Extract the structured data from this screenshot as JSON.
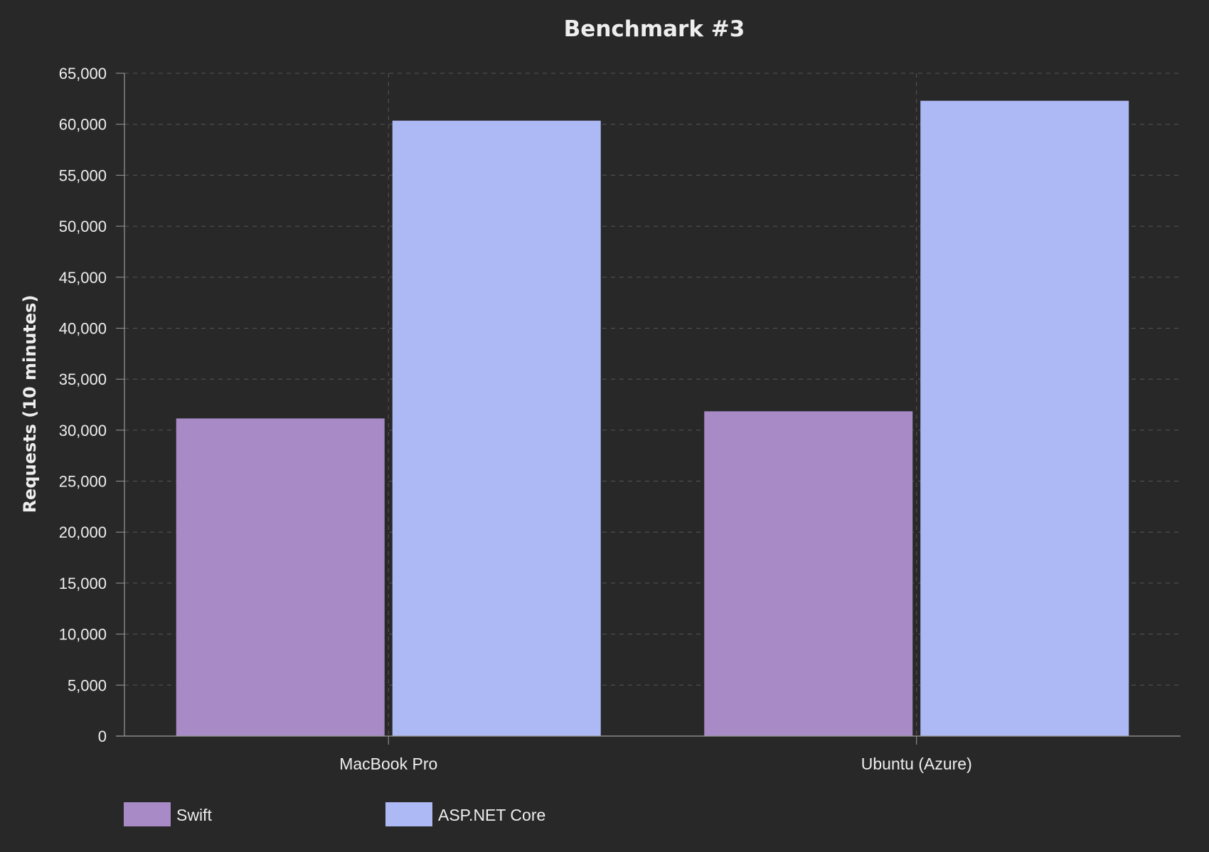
{
  "chart_data": {
    "type": "bar",
    "title": "Benchmark #3",
    "xlabel": "",
    "ylabel": "Requests (10 minutes)",
    "categories": [
      "MacBook Pro",
      "Ubuntu (Azure)"
    ],
    "series": [
      {
        "name": "Swift",
        "values": [
          31150,
          31850
        ],
        "color": "#a78ac6"
      },
      {
        "name": "ASP.NET Core",
        "values": [
          60350,
          62300
        ],
        "color": "#adb9f5"
      }
    ],
    "ylim": [
      0,
      65000
    ],
    "yticks": [
      0,
      5000,
      10000,
      15000,
      20000,
      25000,
      30000,
      35000,
      40000,
      45000,
      50000,
      55000,
      60000,
      65000
    ],
    "ytick_labels": [
      "0",
      "5,000",
      "10,000",
      "15,000",
      "20,000",
      "25,000",
      "30,000",
      "35,000",
      "40,000",
      "45,000",
      "50,000",
      "55,000",
      "60,000",
      "65,000"
    ],
    "grid": true,
    "legend_position": "bottom-left"
  },
  "colors": {
    "background": "#282828",
    "text": "#eeeeee",
    "grid": "#555555",
    "axis": "#9a9a9a"
  }
}
